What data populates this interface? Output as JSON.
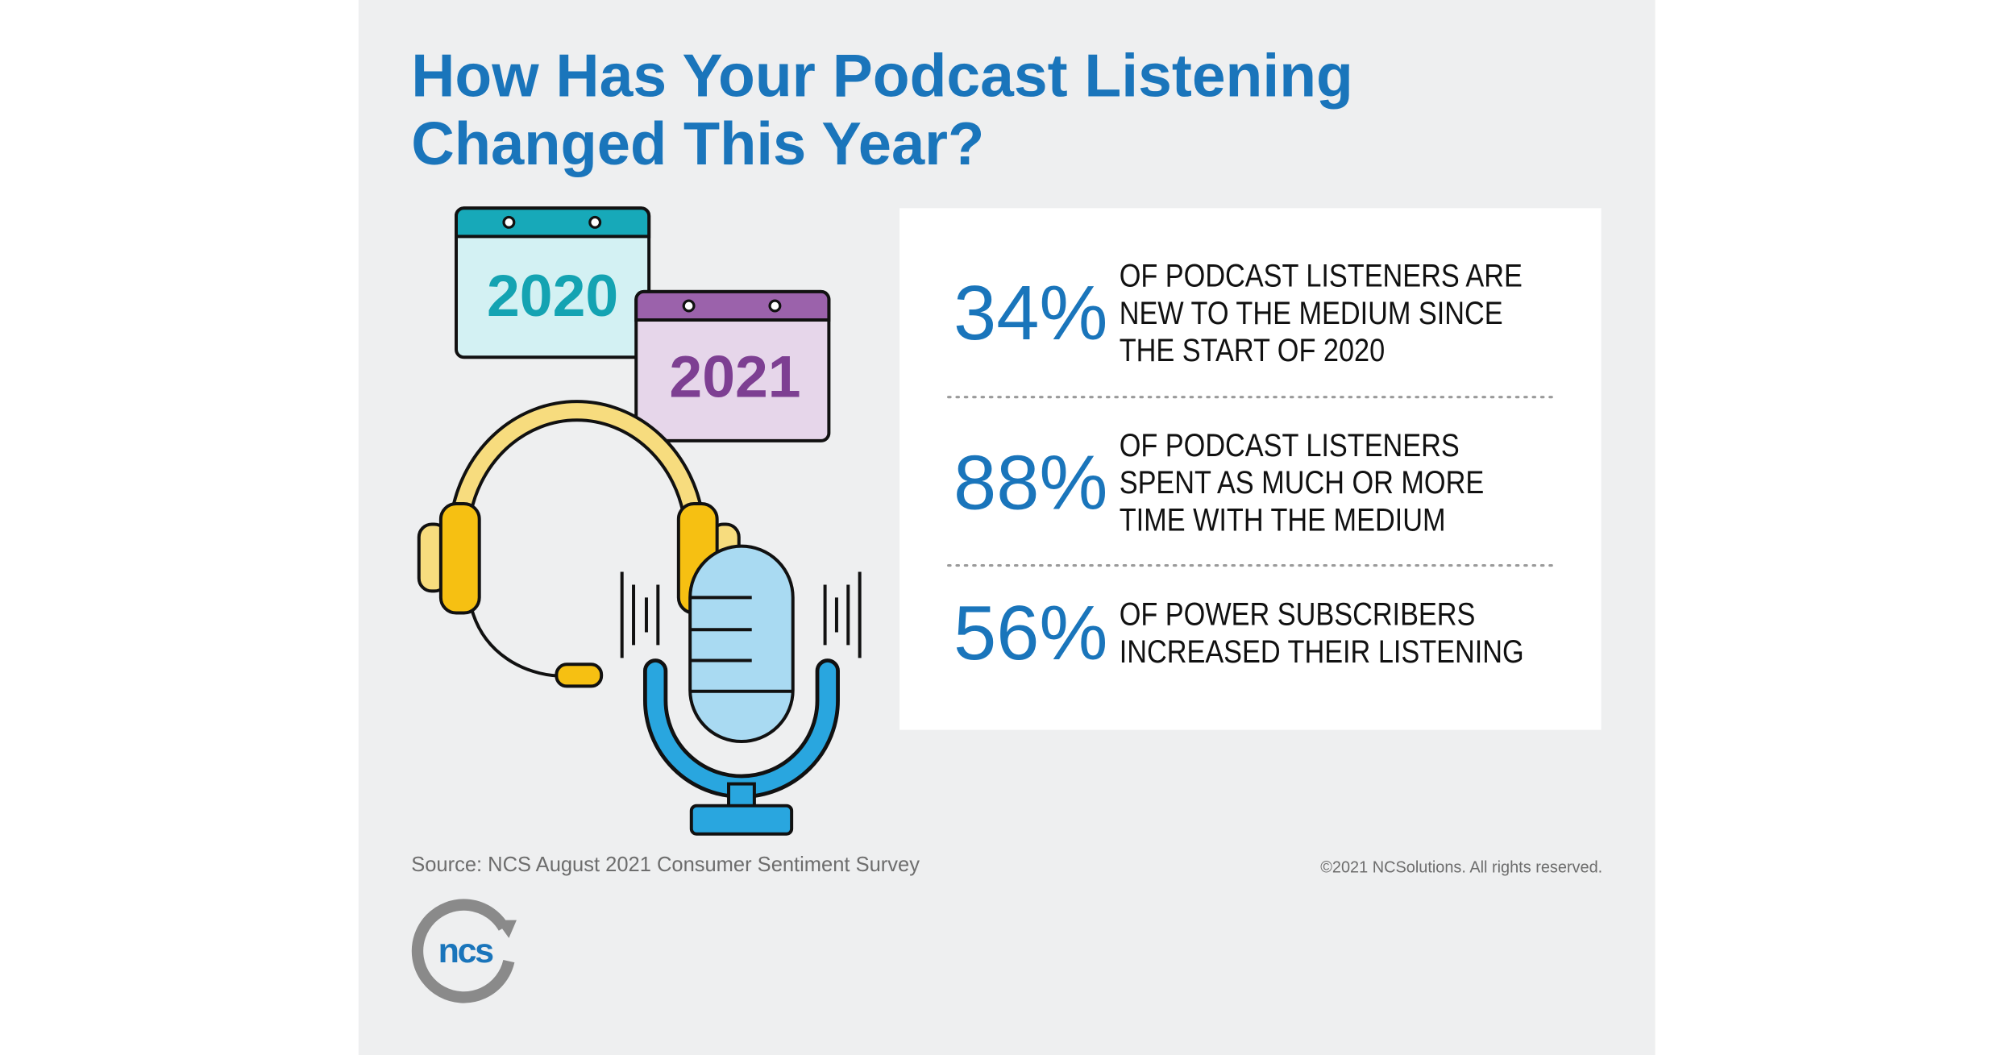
{
  "header": {
    "title_lines": [
      "How Has Your Podcast Listening",
      "Changed This Year?"
    ]
  },
  "illustration": {
    "calendars": [
      "2020",
      "2021"
    ]
  },
  "stats": [
    {
      "value": "34%",
      "lines": [
        "OF PODCAST LISTENERS ARE",
        "NEW TO THE MEDIUM SINCE",
        "THE START OF 2020"
      ]
    },
    {
      "value": "88%",
      "lines": [
        "OF PODCAST LISTENERS",
        "SPENT AS MUCH OR MORE",
        "TIME WITH THE MEDIUM"
      ]
    },
    {
      "value": "56%",
      "lines": [
        "OF POWER SUBSCRIBERS",
        "INCREASED THEIR LISTENING"
      ]
    }
  ],
  "footer": {
    "source": "Source: NCS August 2021 Consumer Sentiment Survey",
    "copyright": "©2021 NCSolutions. All rights reserved.",
    "logo": "ncs"
  }
}
